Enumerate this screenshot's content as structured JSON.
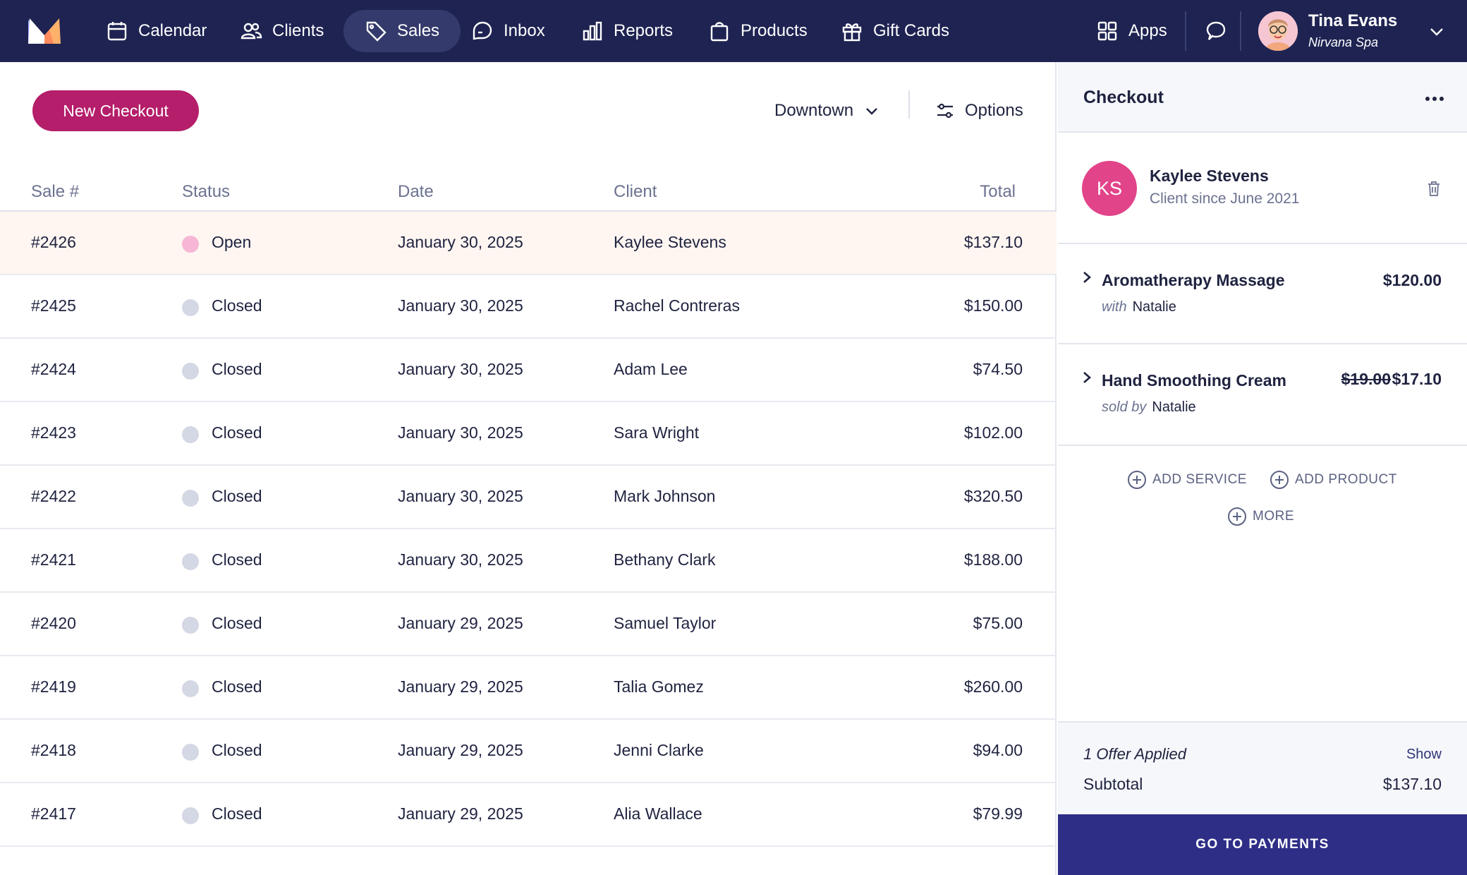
{
  "nav": {
    "items": [
      {
        "label": "Calendar",
        "icon": "calendar-icon"
      },
      {
        "label": "Clients",
        "icon": "users-icon"
      },
      {
        "label": "Sales",
        "icon": "tag-icon",
        "active": true
      },
      {
        "label": "Inbox",
        "icon": "inbox-icon"
      },
      {
        "label": "Reports",
        "icon": "bar-chart-icon"
      },
      {
        "label": "Products",
        "icon": "bag-icon"
      },
      {
        "label": "Gift Cards",
        "icon": "gift-icon"
      }
    ],
    "apps_label": "Apps",
    "user": {
      "name": "Tina Evans",
      "org": "Nirvana Spa"
    }
  },
  "toolbar": {
    "new_checkout_label": "New Checkout",
    "location": "Downtown",
    "options_label": "Options"
  },
  "table": {
    "headers": {
      "sale": "Sale #",
      "status": "Status",
      "date": "Date",
      "client": "Client",
      "total": "Total"
    },
    "rows": [
      {
        "sale": "#2426",
        "status": "Open",
        "date": "January 30, 2025",
        "client": "Kaylee Stevens",
        "total": "$137.10",
        "selected": true
      },
      {
        "sale": "#2425",
        "status": "Closed",
        "date": "January 30, 2025",
        "client": "Rachel Contreras",
        "total": "$150.00"
      },
      {
        "sale": "#2424",
        "status": "Closed",
        "date": "January 30, 2025",
        "client": "Adam Lee",
        "total": "$74.50"
      },
      {
        "sale": "#2423",
        "status": "Closed",
        "date": "January 30, 2025",
        "client": "Sara Wright",
        "total": "$102.00"
      },
      {
        "sale": "#2422",
        "status": "Closed",
        "date": "January 30, 2025",
        "client": "Mark Johnson",
        "total": "$320.50"
      },
      {
        "sale": "#2421",
        "status": "Closed",
        "date": "January 30, 2025",
        "client": "Bethany Clark",
        "total": "$188.00"
      },
      {
        "sale": "#2420",
        "status": "Closed",
        "date": "January 29, 2025",
        "client": "Samuel Taylor",
        "total": "$75.00"
      },
      {
        "sale": "#2419",
        "status": "Closed",
        "date": "January 29, 2025",
        "client": "Talia Gomez",
        "total": "$260.00"
      },
      {
        "sale": "#2418",
        "status": "Closed",
        "date": "January 29, 2025",
        "client": "Jenni Clarke",
        "total": "$94.00"
      },
      {
        "sale": "#2417",
        "status": "Closed",
        "date": "January 29, 2025",
        "client": "Alia Wallace",
        "total": "$79.99"
      }
    ]
  },
  "status_colors": {
    "Open": "#f7b6d6",
    "Closed": "#d4d8e4"
  },
  "checkout": {
    "title": "Checkout",
    "client": {
      "initials": "KS",
      "name": "Kaylee Stevens",
      "since": "Client since June 2021"
    },
    "items": [
      {
        "name": "Aromatherapy Massage",
        "price": "$120.00",
        "sub_prefix": "with",
        "staff": "Natalie"
      },
      {
        "name": "Hand Smoothing Cream",
        "original_price": "$19.00",
        "price": "$17.10",
        "sub_prefix": "sold by",
        "staff": "Natalie"
      }
    ],
    "add_service_label": "ADD SERVICE",
    "add_product_label": "ADD PRODUCT",
    "more_label": "MORE",
    "offer_text": "1 Offer Applied",
    "show_label": "Show",
    "subtotal_label": "Subtotal",
    "subtotal_value": "$137.10",
    "payments_label": "GO TO PAYMENTS"
  }
}
